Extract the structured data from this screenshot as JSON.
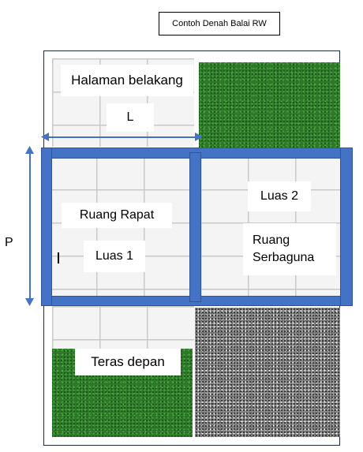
{
  "title": "Contoh Denah Balai RW",
  "labels": {
    "halaman_belakang": "Halaman belakang",
    "dim_l": "L",
    "dim_p": "P",
    "luas_2": "Luas 2",
    "ruang_rapat": "Ruang Rapat",
    "luas_1": "Luas 1",
    "ruang_serbaguna_line1": "Ruang",
    "ruang_serbaguna_line2": "Serbaguna",
    "teras_depan": "Teras depan"
  },
  "colors": {
    "wall": "#4472c4",
    "grass": "#2f7a2a",
    "gravel": "#8e8e8e",
    "tile": "#f4f4f4"
  }
}
